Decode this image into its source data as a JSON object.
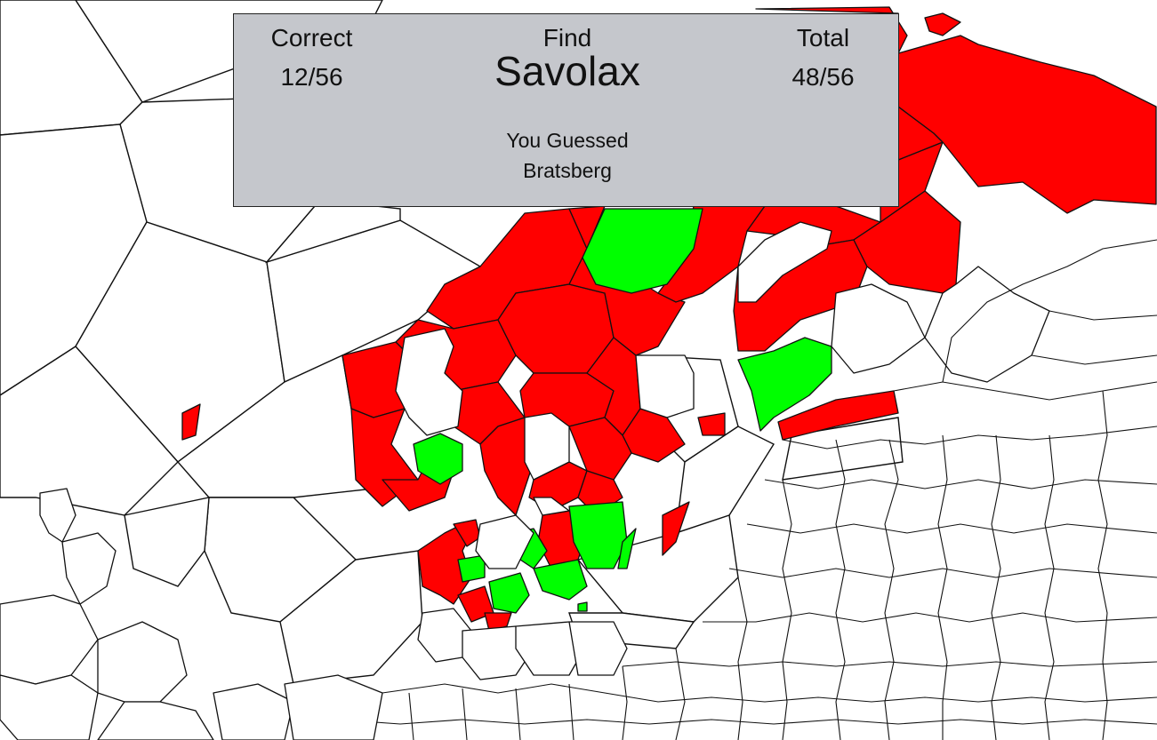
{
  "scoreboard": {
    "correct_label": "Correct",
    "correct_value": "12/56",
    "find_label": "Find",
    "target_name": "Savolax",
    "total_label": "Total",
    "total_value": "48/56",
    "guess_label": "You Guessed",
    "guess_value": "Bratsberg"
  },
  "colors": {
    "wrong": "#ff0000",
    "correct": "#00ff00",
    "unanswered": "#ffffff",
    "panel": "#c5c7cc"
  }
}
